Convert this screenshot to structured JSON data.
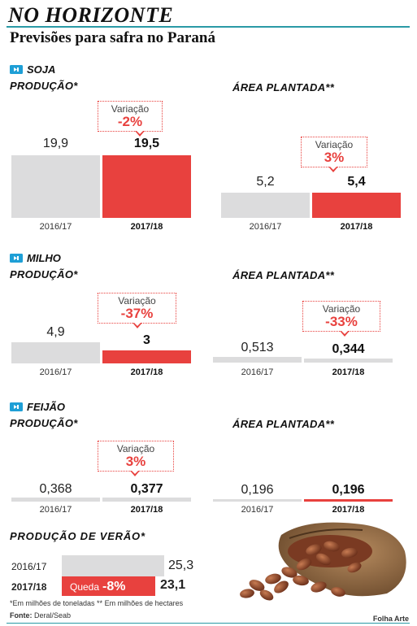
{
  "header": {
    "title": "NO HORIZONTE",
    "subtitle": "Previsões para safra no Paraná"
  },
  "colors": {
    "accent": "#e8413e",
    "previous": "#dcdcdd",
    "rule": "#2a9aa6",
    "icon": "#1e9fd6"
  },
  "icons": {
    "crop": "arrow-tag-icon",
    "beans_photo": "cocoa-beans-sack-illustration"
  },
  "crops": [
    {
      "name": "SOJA",
      "production_label": "PRODUÇÃO*",
      "area_label": "ÁREA PLANTADA**",
      "production": {
        "years": [
          "2016/17",
          "2017/18"
        ],
        "values": [
          "19,9",
          "19,5"
        ],
        "numeric": [
          19.9,
          19.5
        ],
        "variation_label": "Variação",
        "variation": "-2%"
      },
      "area": {
        "years": [
          "2016/17",
          "2017/18"
        ],
        "values": [
          "5,2",
          "5,4"
        ],
        "numeric": [
          5.2,
          5.4
        ],
        "variation_label": "Variação",
        "variation": "3%"
      }
    },
    {
      "name": "MILHO",
      "production_label": "PRODUÇÃO*",
      "area_label": "ÁREA PLANTADA**",
      "production": {
        "years": [
          "2016/17",
          "2017/18"
        ],
        "values": [
          "4,9",
          "3"
        ],
        "numeric": [
          4.9,
          3
        ],
        "variation_label": "Variação",
        "variation": "-37%"
      },
      "area": {
        "years": [
          "2016/17",
          "2017/18"
        ],
        "values": [
          "0,513",
          "0,344"
        ],
        "numeric": [
          0.513,
          0.344
        ],
        "variation_label": "Variação",
        "variation": "-33%"
      }
    },
    {
      "name": "FEIJÃO",
      "production_label": "PRODUÇÃO*",
      "area_label": "ÁREA PLANTADA**",
      "production": {
        "years": [
          "2016/17",
          "2017/18"
        ],
        "values": [
          "0,368",
          "0,377"
        ],
        "numeric": [
          0.368,
          0.377
        ],
        "variation_label": "Variação",
        "variation": "3%"
      },
      "area": {
        "years": [
          "2016/17",
          "2017/18"
        ],
        "values": [
          "0,196",
          "0,196"
        ],
        "numeric": [
          0.196,
          0.196
        ]
      }
    }
  ],
  "summer": {
    "label": "PRODUÇÃO DE VERÃO*",
    "years": [
      "2016/17",
      "2017/18"
    ],
    "values": [
      "25,3",
      "23,1"
    ],
    "numeric": [
      25.3,
      23.1
    ],
    "drop_label": "Queda",
    "drop": "-8%"
  },
  "footer": {
    "footnote": "*Em milhões de toneladas  ** Em milhões de hectares",
    "source_label": "Fonte:",
    "source": "Deral/Seab",
    "credit": "Folha Arte"
  },
  "chart_data": [
    {
      "type": "bar",
      "title": "SOJA — PRODUÇÃO*",
      "categories": [
        "2016/17",
        "2017/18"
      ],
      "values": [
        19.9,
        19.5
      ]
    },
    {
      "type": "bar",
      "title": "SOJA — ÁREA PLANTADA**",
      "categories": [
        "2016/17",
        "2017/18"
      ],
      "values": [
        5.2,
        5.4
      ]
    },
    {
      "type": "bar",
      "title": "MILHO — PRODUÇÃO*",
      "categories": [
        "2016/17",
        "2017/18"
      ],
      "values": [
        4.9,
        3
      ]
    },
    {
      "type": "bar",
      "title": "MILHO — ÁREA PLANTADA**",
      "categories": [
        "2016/17",
        "2017/18"
      ],
      "values": [
        0.513,
        0.344
      ]
    },
    {
      "type": "bar",
      "title": "FEIJÃO — PRODUÇÃO*",
      "categories": [
        "2016/17",
        "2017/18"
      ],
      "values": [
        0.368,
        0.377
      ]
    },
    {
      "type": "bar",
      "title": "FEIJÃO — ÁREA PLANTADA**",
      "categories": [
        "2016/17",
        "2017/18"
      ],
      "values": [
        0.196,
        0.196
      ]
    },
    {
      "type": "bar",
      "title": "PRODUÇÃO DE VERÃO*",
      "categories": [
        "2016/17",
        "2017/18"
      ],
      "values": [
        25.3,
        23.1
      ]
    }
  ]
}
